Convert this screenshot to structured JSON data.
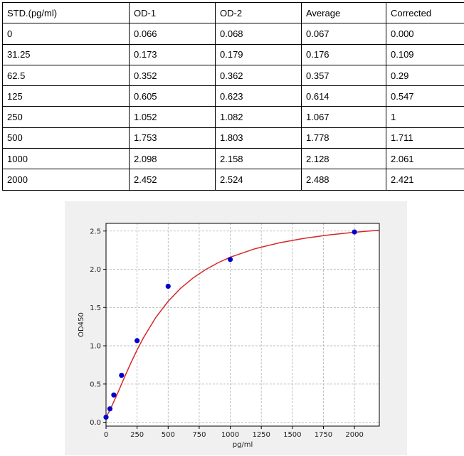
{
  "table": {
    "headers": [
      "STD.(pg/ml)",
      "OD-1",
      "OD-2",
      "Average",
      "Corrected"
    ],
    "rows": [
      [
        "0",
        "0.066",
        "0.068",
        "0.067",
        "0.000"
      ],
      [
        "31.25",
        "0.173",
        "0.179",
        "0.176",
        "0.109"
      ],
      [
        "62.5",
        "0.352",
        "0.362",
        "0.357",
        "0.29"
      ],
      [
        "125",
        "0.605",
        "0.623",
        "0.614",
        "0.547"
      ],
      [
        "250",
        "1.052",
        "1.082",
        "1.067",
        "1"
      ],
      [
        "500",
        "1.753",
        "1.803",
        "1.778",
        "1.711"
      ],
      [
        "1000",
        "2.098",
        "2.158",
        "2.128",
        "2.061"
      ],
      [
        "2000",
        "2.452",
        "2.524",
        "2.488",
        "2.421"
      ]
    ]
  },
  "chart_data": {
    "type": "scatter",
    "title": "",
    "xlabel": "pg/ml",
    "ylabel": "OD450",
    "xlim": [
      0,
      2200
    ],
    "ylim": [
      -0.05,
      2.6
    ],
    "xticks": [
      0,
      250,
      500,
      750,
      1000,
      1250,
      1500,
      1750,
      2000
    ],
    "yticks": [
      0.0,
      0.5,
      1.0,
      1.5,
      2.0,
      2.5
    ],
    "ytick_labels": [
      "0.0",
      "0.5",
      "1.0",
      "1.5",
      "2.0",
      "2.5"
    ],
    "grid": true,
    "point_color": "#0000cc",
    "curve_color": "#d62728",
    "points": {
      "x": [
        0,
        31.25,
        62.5,
        125,
        250,
        500,
        1000,
        2000
      ],
      "y": [
        0.067,
        0.176,
        0.357,
        0.614,
        1.067,
        1.778,
        2.128,
        2.488
      ]
    },
    "fit_curve": {
      "x": [
        0,
        25,
        50,
        100,
        150,
        200,
        250,
        300,
        400,
        500,
        600,
        700,
        800,
        900,
        1000,
        1200,
        1400,
        1600,
        1800,
        2000,
        2200
      ],
      "y": [
        0.067,
        0.141,
        0.225,
        0.406,
        0.594,
        0.776,
        0.946,
        1.102,
        1.369,
        1.582,
        1.751,
        1.886,
        1.995,
        2.084,
        2.157,
        2.269,
        2.348,
        2.406,
        2.45,
        2.484,
        2.511
      ]
    }
  }
}
